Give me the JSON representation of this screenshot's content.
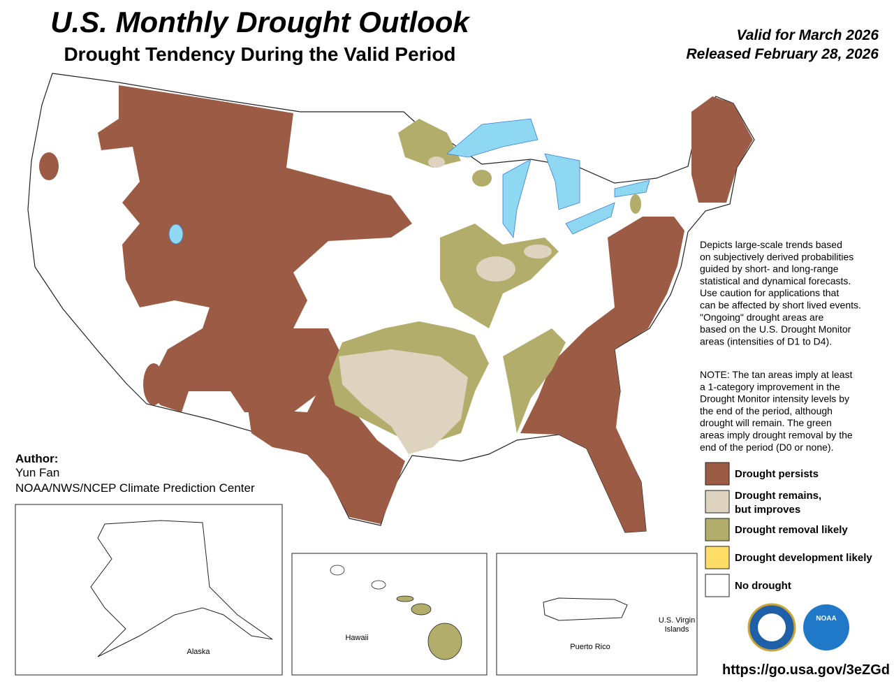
{
  "header": {
    "title": "U.S. Monthly Drought Outlook",
    "subtitle": "Drought Tendency During the Valid Period",
    "valid": "Valid for March 2026",
    "released": "Released February 28, 2026"
  },
  "description": [
    "Depicts large-scale trends based",
    "on subjectively derived probabilities",
    "guided by short- and long-range",
    "statistical and dynamical forecasts.",
    "Use caution for applications that",
    "can be affected by short lived events.",
    "\"Ongoing\" drought areas are",
    "based on the U.S. Drought Monitor",
    "areas (intensities of D1 to D4)."
  ],
  "note": [
    "NOTE: The tan areas imply at least",
    "a 1-category improvement in the",
    "Drought Monitor intensity levels by",
    "the end of the period, although",
    "drought will remain. The green",
    "areas imply drought removal by the",
    "end of the period (D0 or none)."
  ],
  "legend": [
    {
      "lines": [
        "Drought persists"
      ],
      "color": "#9c5b45"
    },
    {
      "lines": [
        "Drought remains,",
        "but improves"
      ],
      "color": "#ded3bf"
    },
    {
      "lines": [
        "Drought removal likely"
      ],
      "color": "#b3ad6c"
    },
    {
      "lines": [
        "Drought development likely"
      ],
      "color": "#ffdd66"
    },
    {
      "lines": [
        "No drought"
      ],
      "color": "#ffffff"
    }
  ],
  "author": {
    "label": "Author:",
    "name": "Yun Fan",
    "org": "NOAA/NWS/NCEP Climate Prediction Center"
  },
  "insets": {
    "alaska": "Alaska",
    "hawaii": "Hawaii",
    "puerto_rico": "Puerto Rico",
    "virgin_islands": [
      "U.S. Virgin",
      "Islands"
    ]
  },
  "logos": {
    "noaa": "NOAA"
  },
  "url": "https://go.usa.gov/3eZGd"
}
